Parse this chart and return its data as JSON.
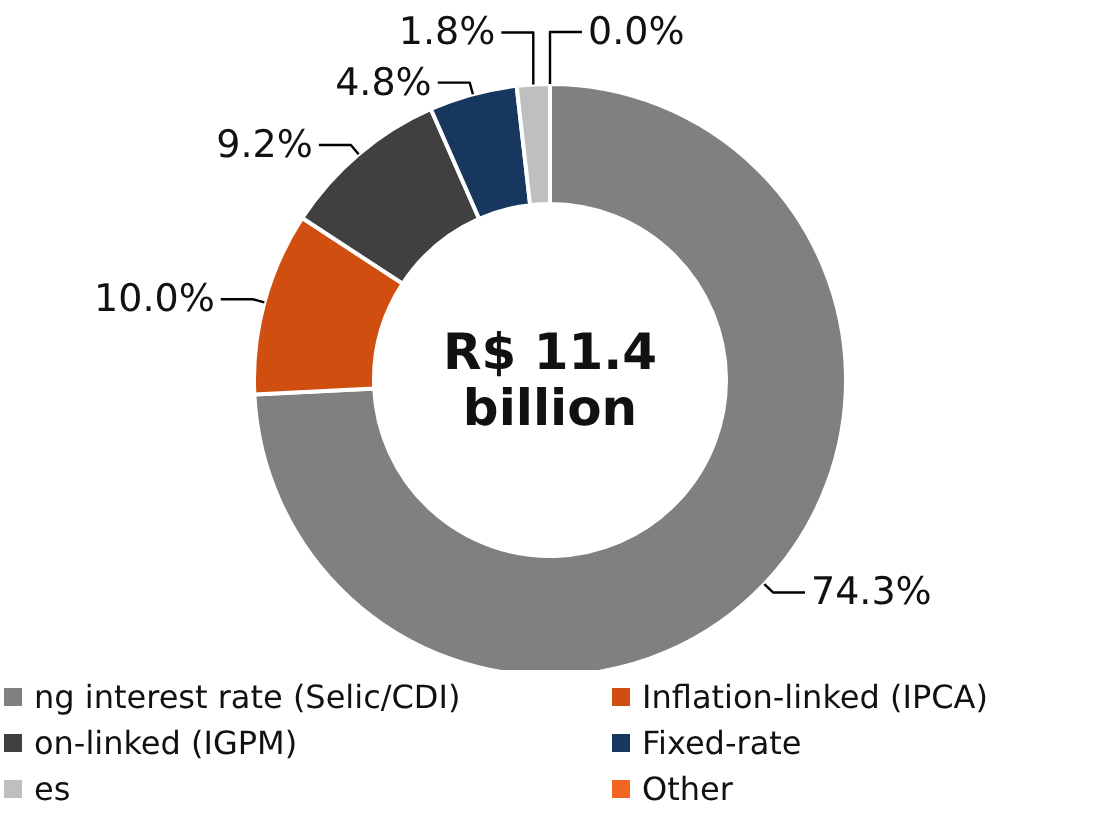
{
  "chart_data": {
    "type": "donut",
    "categories": [
      "ng interest rate (Selic/CDI)",
      "Inflation-linked (IPCA)",
      "on-linked (IGPM)",
      "Fixed-rate",
      "es",
      "Other"
    ],
    "values": [
      74.3,
      10.0,
      9.2,
      4.8,
      1.8,
      0.0
    ],
    "colors": [
      "#808080",
      "#d04e0f",
      "#404040",
      "#17375e",
      "#bfbfbf",
      "#f26522"
    ],
    "value_labels": [
      "74.3%",
      "10.0%",
      "9.2%",
      "4.8%",
      "1.8%",
      "0.0%"
    ],
    "annotations": [
      "R$ 11.4",
      "billion"
    ],
    "legend": "bottom"
  }
}
